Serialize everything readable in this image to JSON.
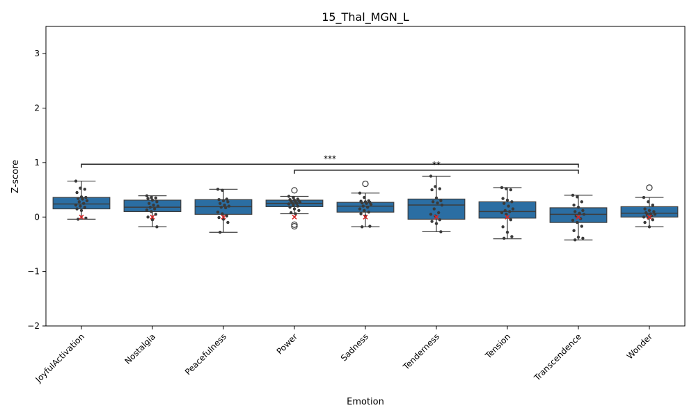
{
  "chart_data": {
    "type": "box",
    "title": "15_Thal_MGN_L",
    "xlabel": "Emotion",
    "ylabel": "Z-score",
    "ylim": [
      -2,
      3.5
    ],
    "yticks": [
      -2,
      -1,
      0,
      1,
      2,
      3
    ],
    "ytick_labels": [
      "−2",
      "−1",
      "0",
      "1",
      "2",
      "3"
    ],
    "grid": false,
    "box_color": "#2b6ea3",
    "point_color": "#3a3a3a",
    "marker_color": "#d62728",
    "categories": [
      "JoyfulActivation",
      "Nostalgia",
      "Peacefulness",
      "Power",
      "Sadness",
      "Tenderness",
      "Tension",
      "Transcendence",
      "Wonder"
    ],
    "boxes": [
      {
        "q1": 0.15,
        "median": 0.24,
        "q3": 0.36,
        "whisker_low": -0.04,
        "whisker_high": 0.66,
        "mean": 0.0,
        "outliers": []
      },
      {
        "q1": 0.1,
        "median": 0.18,
        "q3": 0.31,
        "whisker_low": -0.18,
        "whisker_high": 0.39,
        "mean": 0.0,
        "outliers": []
      },
      {
        "q1": 0.05,
        "median": 0.19,
        "q3": 0.32,
        "whisker_low": -0.28,
        "whisker_high": 0.51,
        "mean": 0.0,
        "outliers": []
      },
      {
        "q1": 0.19,
        "median": 0.25,
        "q3": 0.31,
        "whisker_low": 0.06,
        "whisker_high": 0.38,
        "mean": 0.0,
        "outliers": [
          0.49,
          -0.14,
          -0.17
        ]
      },
      {
        "q1": 0.09,
        "median": 0.2,
        "q3": 0.27,
        "whisker_low": -0.18,
        "whisker_high": 0.44,
        "mean": 0.0,
        "outliers": [
          0.61
        ]
      },
      {
        "q1": -0.04,
        "median": 0.22,
        "q3": 0.33,
        "whisker_low": -0.27,
        "whisker_high": 0.75,
        "mean": 0.0,
        "outliers": []
      },
      {
        "q1": -0.02,
        "median": 0.1,
        "q3": 0.28,
        "whisker_low": -0.4,
        "whisker_high": 0.54,
        "mean": 0.0,
        "outliers": []
      },
      {
        "q1": -0.1,
        "median": 0.05,
        "q3": 0.17,
        "whisker_low": -0.42,
        "whisker_high": 0.4,
        "mean": 0.0,
        "outliers": []
      },
      {
        "q1": 0.0,
        "median": 0.07,
        "q3": 0.19,
        "whisker_low": -0.18,
        "whisker_high": 0.36,
        "mean": 0.0,
        "outliers": [
          0.54
        ]
      }
    ],
    "points": [
      [
        0.66,
        0.53,
        0.51,
        0.45,
        0.37,
        0.36,
        0.34,
        0.33,
        0.3,
        0.28,
        0.25,
        0.22,
        0.2,
        0.18,
        0.15,
        0.12,
        -0.02,
        -0.04
      ],
      [
        0.39,
        0.36,
        0.35,
        0.34,
        0.31,
        0.28,
        0.25,
        0.22,
        0.2,
        0.18,
        0.15,
        0.13,
        0.1,
        0.05,
        0.0,
        -0.05,
        -0.18
      ],
      [
        0.51,
        0.49,
        0.33,
        0.32,
        0.3,
        0.28,
        0.25,
        0.22,
        0.2,
        0.18,
        0.17,
        0.09,
        0.06,
        0.02,
        -0.01,
        -0.04,
        -0.1,
        -0.28
      ],
      [
        0.38,
        0.36,
        0.33,
        0.32,
        0.31,
        0.3,
        0.29,
        0.28,
        0.27,
        0.26,
        0.25,
        0.24,
        0.22,
        0.2,
        0.18,
        0.15,
        0.12,
        0.08,
        0.06
      ],
      [
        0.44,
        0.36,
        0.3,
        0.29,
        0.28,
        0.27,
        0.26,
        0.25,
        0.23,
        0.2,
        0.18,
        0.15,
        0.12,
        0.09,
        0.06,
        0.02,
        -0.17,
        -0.18
      ],
      [
        0.75,
        0.56,
        0.52,
        0.5,
        0.35,
        0.3,
        0.28,
        0.26,
        0.22,
        0.15,
        0.08,
        0.05,
        0.02,
        -0.05,
        -0.08,
        -0.12,
        -0.27
      ],
      [
        0.54,
        0.52,
        0.5,
        0.34,
        0.31,
        0.28,
        0.25,
        0.2,
        0.15,
        0.12,
        0.1,
        0.08,
        0.05,
        -0.05,
        -0.18,
        -0.28,
        -0.36,
        -0.39
      ],
      [
        0.4,
        0.37,
        0.28,
        0.22,
        0.18,
        0.12,
        0.1,
        0.07,
        0.05,
        0.02,
        -0.03,
        -0.06,
        -0.1,
        -0.17,
        -0.25,
        -0.37,
        -0.39,
        -0.42
      ],
      [
        0.36,
        0.28,
        0.22,
        0.15,
        0.12,
        0.1,
        0.08,
        0.06,
        0.05,
        0.04,
        0.02,
        0.0,
        -0.02,
        -0.05,
        -0.1,
        -0.18
      ]
    ],
    "significance": [
      {
        "from": 0,
        "to": 7,
        "y": 0.97,
        "label": "***"
      },
      {
        "from": 3,
        "to": 7,
        "y": 0.86,
        "label": "**"
      }
    ]
  }
}
